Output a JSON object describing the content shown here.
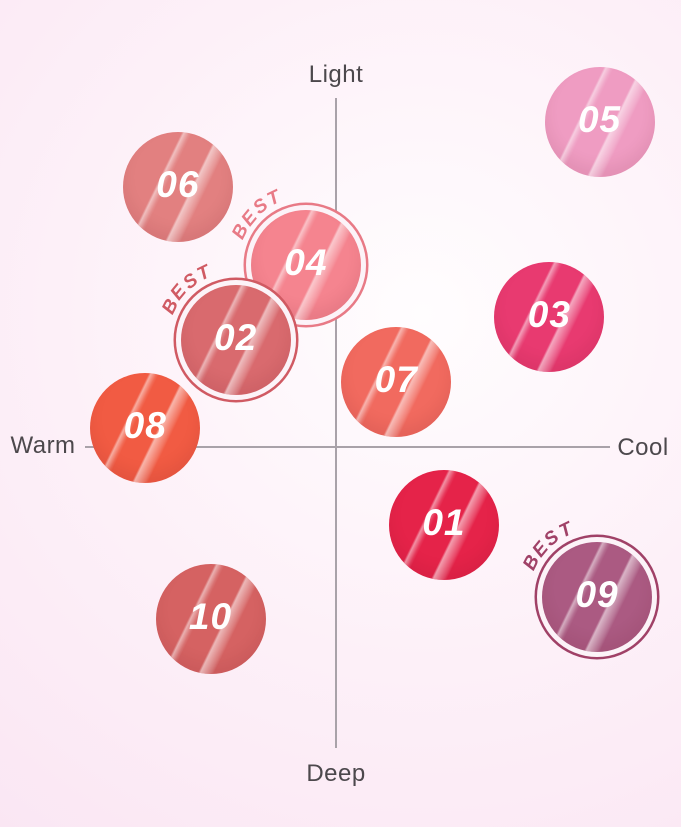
{
  "chart_data": {
    "type": "scatter",
    "description_axes": {
      "x_axis": {
        "min_label": "Warm",
        "max_label": "Cool",
        "range": [
          -1,
          1
        ]
      },
      "y_axis": {
        "min_label": "Deep",
        "max_label": "Light",
        "range": [
          -1,
          1
        ]
      }
    },
    "best_tag_text": "BEST",
    "points": [
      {
        "label": "06",
        "x": -0.63,
        "y": 0.8,
        "color": "#e28080",
        "best": false
      },
      {
        "label": "05",
        "x": 1.05,
        "y": 1.0,
        "color": "#ef9cc2",
        "best": false
      },
      {
        "label": "04",
        "x": -0.12,
        "y": 0.56,
        "color": "#f5848f",
        "best": true,
        "accent": "#e87a86"
      },
      {
        "label": "02",
        "x": -0.4,
        "y": 0.33,
        "color": "#d96a6e",
        "best": true,
        "accent": "#d05a63"
      },
      {
        "label": "03",
        "x": 0.85,
        "y": 0.4,
        "color": "#e83a70",
        "best": false
      },
      {
        "label": "07",
        "x": 0.24,
        "y": 0.2,
        "color": "#f16a5f",
        "best": false
      },
      {
        "label": "08",
        "x": -0.76,
        "y": 0.06,
        "color": "#f15b43",
        "best": false
      },
      {
        "label": "01",
        "x": 0.43,
        "y": -0.24,
        "color": "#e52349",
        "best": false
      },
      {
        "label": "10",
        "x": -0.5,
        "y": -0.53,
        "color": "#d56262",
        "best": false
      },
      {
        "label": "09",
        "x": 1.04,
        "y": -0.46,
        "color": "#ab5a82",
        "best": true,
        "accent": "#a04167"
      }
    ]
  },
  "axes_style": {
    "line_color": "#a9a2a9",
    "label_color": "#4c484c"
  },
  "background": {
    "center": "#fffdfe",
    "mid": "#fdf0f8",
    "edge": "#f9e2f1"
  }
}
